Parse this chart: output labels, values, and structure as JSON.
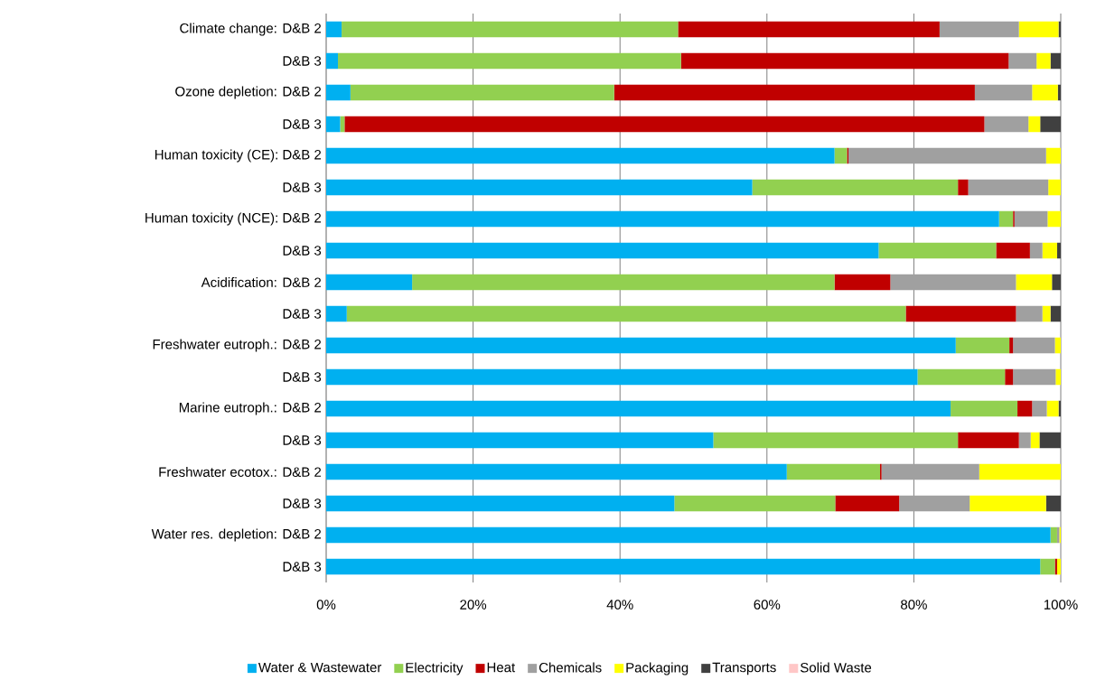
{
  "chart_data": {
    "type": "bar",
    "orientation": "horizontal",
    "stacked": true,
    "grid": "x",
    "legend": "bottom",
    "categories": [
      "Climate change: D&B 2",
      "D&B 3",
      "Ozone depletion: D&B 2",
      "D&B 3",
      "Human toxicity (CE): D&B 2",
      "D&B 3",
      "Human toxicity (NCE): D&B 2",
      "D&B 3",
      "Acidification: D&B 2",
      "D&B 3",
      "Freshwater eutroph.: D&B 2",
      "D&B 3",
      "Marine eutroph.: D&B 2",
      "D&B 3",
      "Freshwater ecotox.: D&B 2",
      "D&B 3",
      "Water res. depletion: D&B 2",
      "D&B 3"
    ],
    "xlim": [
      0,
      100
    ],
    "xticks": [
      {
        "value": 0,
        "label": "0%"
      },
      {
        "value": 20,
        "label": "20%"
      },
      {
        "value": 40,
        "label": "40%"
      },
      {
        "value": 60,
        "label": "60%"
      },
      {
        "value": 80,
        "label": "80%"
      },
      {
        "value": 100,
        "label": "100%"
      }
    ],
    "series": [
      {
        "name": "Water & Wastewater",
        "color": "#00b0f0",
        "values": [
          2.1,
          1.6,
          3.3,
          1.9,
          69.2,
          58.0,
          91.6,
          75.2,
          11.7,
          2.8,
          85.7,
          80.5,
          85.0,
          52.7,
          62.7,
          47.4,
          98.6,
          97.2
        ]
      },
      {
        "name": "Electricity",
        "color": "#92d050",
        "values": [
          45.8,
          46.7,
          35.9,
          0.6,
          1.7,
          28.0,
          1.9,
          16.0,
          57.5,
          76.1,
          7.3,
          11.9,
          9.1,
          33.3,
          12.7,
          21.9,
          0.9,
          2.0
        ]
      },
      {
        "name": "Heat",
        "color": "#c00000",
        "values": [
          35.6,
          44.6,
          49.1,
          87.1,
          0.2,
          1.4,
          0.2,
          4.6,
          7.6,
          15.0,
          0.5,
          1.1,
          2.0,
          8.3,
          0.2,
          8.7,
          0,
          0.3
        ]
      },
      {
        "name": "Chemicals",
        "color": "#a0a0a0",
        "values": [
          10.8,
          3.8,
          7.8,
          6.0,
          26.9,
          10.9,
          4.5,
          1.7,
          17.1,
          3.6,
          5.7,
          5.8,
          2.0,
          1.6,
          13.3,
          9.6,
          0.3,
          0
        ]
      },
      {
        "name": "Packaging",
        "color": "#ffff00",
        "values": [
          5.4,
          1.9,
          3.5,
          1.6,
          2.0,
          1.7,
          1.8,
          2.0,
          4.9,
          1.1,
          0.8,
          0.7,
          1.6,
          1.2,
          11.1,
          10.4,
          0.2,
          0.5
        ]
      },
      {
        "name": "Transports",
        "color": "#404040",
        "values": [
          0.3,
          1.4,
          0.4,
          2.8,
          0,
          0,
          0,
          0.5,
          1.2,
          1.4,
          0,
          0,
          0.3,
          2.9,
          0,
          2.0,
          0,
          0
        ]
      },
      {
        "name": "Solid Waste",
        "color": "#ffc7c7",
        "values": [
          0,
          0,
          0,
          0,
          0,
          0,
          0,
          0,
          0,
          0,
          0,
          0,
          0,
          0,
          0,
          0,
          0,
          0
        ]
      }
    ]
  }
}
